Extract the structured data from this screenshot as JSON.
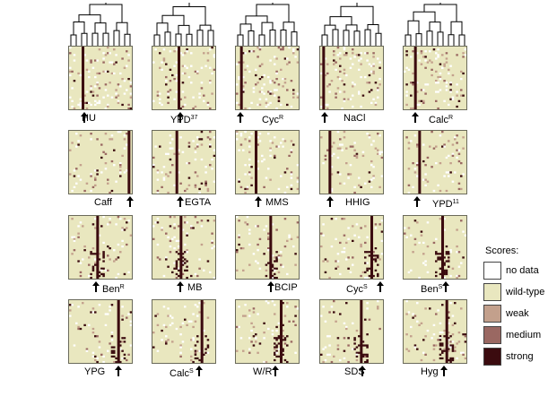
{
  "colors": {
    "no_data": "#ffffff",
    "wild_type": "#e9e7bf",
    "weak": "#c3a08c",
    "medium": "#9a6862",
    "strong": "#3b0b0f",
    "frame": "#6a6a5a"
  },
  "rows": [
    [
      {
        "base": "HU",
        "sup": ""
      },
      {
        "base": "YPD",
        "sup": "37"
      },
      {
        "base": "Cyc",
        "sup": "R"
      },
      {
        "base": "NaCl",
        "sup": ""
      },
      {
        "base": "Calc",
        "sup": "R"
      }
    ],
    [
      {
        "base": "Caff",
        "sup": ""
      },
      {
        "base": "EGTA",
        "sup": ""
      },
      {
        "base": "MMS",
        "sup": ""
      },
      {
        "base": "HHIG",
        "sup": ""
      },
      {
        "base": "YPD",
        "sup": "11"
      }
    ],
    [
      {
        "base": "Ben",
        "sup": "R"
      },
      {
        "base": "MB",
        "sup": ""
      },
      {
        "base": "BCIP",
        "sup": ""
      },
      {
        "base": "Cyc",
        "sup": "S"
      },
      {
        "base": "Ben",
        "sup": "S"
      }
    ],
    [
      {
        "base": "YPG",
        "sup": ""
      },
      {
        "base": "Calc",
        "sup": "S"
      },
      {
        "base": "W/R",
        "sup": ""
      },
      {
        "base": "SDS",
        "sup": ""
      },
      {
        "base": "Hyg",
        "sup": ""
      }
    ]
  ],
  "legend": {
    "title": "Scores:",
    "items": [
      {
        "label": "no data",
        "color_key": "no_data"
      },
      {
        "label": "wild-type",
        "color_key": "wild_type"
      },
      {
        "label": "weak",
        "color_key": "weak"
      },
      {
        "label": "medium",
        "color_key": "medium"
      },
      {
        "label": "strong",
        "color_key": "strong"
      }
    ]
  }
}
